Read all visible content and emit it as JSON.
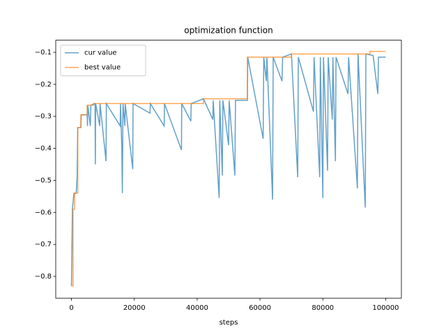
{
  "chart_data": {
    "type": "line",
    "title": "optimization function",
    "x_label": "steps",
    "xlim": [
      -5000,
      105000
    ],
    "ylim": [
      -0.868,
      -0.062
    ],
    "xticks": [
      0,
      20000,
      40000,
      60000,
      80000,
      100000
    ],
    "yticks": [
      {
        "value": -0.8,
        "label": "−0.8"
      },
      {
        "value": -0.7,
        "label": "−0.7"
      },
      {
        "value": -0.6,
        "label": "−0.6"
      },
      {
        "value": -0.5,
        "label": "−0.5"
      },
      {
        "value": -0.4,
        "label": "−0.4"
      },
      {
        "value": -0.3,
        "label": "−0.3"
      },
      {
        "value": -0.2,
        "label": "−0.2"
      },
      {
        "value": -0.1,
        "label": "−0.1"
      }
    ],
    "legend": "upper left",
    "series": [
      {
        "name": "cur value",
        "color": "#1f77b4",
        "x": [
          0,
          300,
          800,
          1500,
          1800,
          2000,
          3000,
          3100,
          5000,
          5100,
          5200,
          6000,
          6200,
          7500,
          7600,
          7700,
          9000,
          9100,
          11000,
          11100,
          15500,
          15600,
          16000,
          16200,
          16400,
          17000,
          17100,
          19500,
          19600,
          25000,
          25100,
          29500,
          29600,
          35000,
          35100,
          38000,
          38100,
          42000,
          45000,
          45100,
          47000,
          47200,
          48000,
          48200,
          50000,
          50200,
          52000,
          52200,
          56000,
          56100,
          61000,
          61200,
          62000,
          62200,
          64000,
          64200,
          67000,
          67200,
          70000,
          72000,
          72200,
          77000,
          77200,
          79000,
          79200,
          80000,
          80200,
          81500,
          81700,
          83000,
          83200,
          84000,
          84200,
          88000,
          88200,
          91000,
          91200,
          93500,
          93700,
          96000,
          97500,
          97700,
          100000
        ],
        "values": [
          -0.83,
          -0.59,
          -0.54,
          -0.54,
          -0.49,
          -0.335,
          -0.335,
          -0.295,
          -0.295,
          -0.33,
          -0.265,
          -0.33,
          -0.265,
          -0.26,
          -0.45,
          -0.26,
          -0.33,
          -0.26,
          -0.44,
          -0.26,
          -0.33,
          -0.26,
          -0.39,
          -0.54,
          -0.26,
          -0.33,
          -0.26,
          -0.465,
          -0.26,
          -0.29,
          -0.26,
          -0.33,
          -0.26,
          -0.405,
          -0.26,
          -0.315,
          -0.26,
          -0.245,
          -0.31,
          -0.25,
          -0.555,
          -0.25,
          -0.485,
          -0.25,
          -0.39,
          -0.25,
          -0.485,
          -0.25,
          -0.25,
          -0.115,
          -0.37,
          -0.115,
          -0.19,
          -0.115,
          -0.56,
          -0.115,
          -0.19,
          -0.115,
          -0.105,
          -0.49,
          -0.115,
          -0.285,
          -0.115,
          -0.49,
          -0.115,
          -0.555,
          -0.115,
          -0.47,
          -0.115,
          -0.31,
          -0.115,
          -0.44,
          -0.115,
          -0.23,
          -0.115,
          -0.525,
          -0.105,
          -0.585,
          -0.105,
          -0.11,
          -0.23,
          -0.115,
          -0.115
        ]
      },
      {
        "name": "best value",
        "color": "#ff7f0e",
        "x": [
          0,
          500,
          500,
          1000,
          1000,
          2000,
          2000,
          3000,
          3000,
          5000,
          5000,
          7000,
          7000,
          42000,
          42000,
          56000,
          56000,
          70000,
          70000,
          95000,
          95000,
          100000
        ],
        "values": [
          -0.83,
          -0.83,
          -0.59,
          -0.59,
          -0.54,
          -0.54,
          -0.335,
          -0.335,
          -0.295,
          -0.295,
          -0.265,
          -0.265,
          -0.26,
          -0.26,
          -0.245,
          -0.245,
          -0.115,
          -0.115,
          -0.105,
          -0.105,
          -0.097,
          -0.097
        ]
      }
    ]
  }
}
